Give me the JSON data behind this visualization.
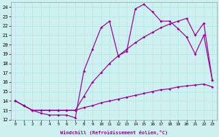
{
  "xlabel": "Windchill (Refroidissement éolien,°C)",
  "bg_color": "#cff0f0",
  "grid_color": "#b8e8e8",
  "line_color": "#990099",
  "xlim": [
    -0.5,
    23.5
  ],
  "ylim": [
    12,
    24.5
  ],
  "yticks": [
    12,
    13,
    14,
    15,
    16,
    17,
    18,
    19,
    20,
    21,
    22,
    23,
    24
  ],
  "xticks": [
    0,
    1,
    2,
    3,
    4,
    5,
    6,
    7,
    8,
    9,
    10,
    11,
    12,
    13,
    14,
    15,
    16,
    17,
    18,
    19,
    20,
    21,
    22,
    23
  ],
  "line_bottom_x": [
    0,
    1,
    2,
    3,
    4,
    5,
    6,
    7,
    8,
    9,
    10,
    11,
    12,
    13,
    14,
    15,
    16,
    17,
    18,
    19,
    20,
    21,
    22,
    23
  ],
  "line_bottom_y": [
    14.0,
    13.5,
    13.0,
    13.0,
    13.0,
    13.0,
    13.0,
    13.0,
    13.3,
    13.5,
    13.8,
    14.0,
    14.2,
    14.4,
    14.6,
    14.8,
    15.0,
    15.2,
    15.3,
    15.5,
    15.6,
    15.7,
    15.8,
    15.5
  ],
  "line_mid_x": [
    0,
    1,
    2,
    3,
    4,
    5,
    6,
    7,
    8,
    9,
    10,
    11,
    12,
    13,
    14,
    15,
    16,
    17,
    18,
    19,
    20,
    21,
    22,
    23
  ],
  "line_mid_y": [
    14.0,
    13.5,
    13.0,
    13.0,
    13.0,
    13.0,
    13.0,
    13.0,
    14.5,
    16.0,
    17.0,
    18.0,
    18.8,
    19.5,
    20.2,
    20.8,
    21.3,
    21.8,
    22.2,
    22.5,
    22.8,
    21.0,
    22.3,
    16.2
  ],
  "line_top_x": [
    0,
    1,
    2,
    3,
    4,
    5,
    6,
    7,
    8,
    9,
    10,
    11,
    12,
    13,
    14,
    15,
    16,
    17,
    18,
    19,
    20,
    21,
    22,
    23
  ],
  "line_top_y": [
    14.0,
    13.5,
    13.0,
    12.7,
    12.5,
    12.5,
    12.5,
    12.2,
    17.2,
    19.5,
    21.8,
    22.5,
    18.8,
    19.3,
    23.8,
    24.3,
    23.5,
    22.5,
    22.5,
    21.7,
    20.8,
    19.0,
    21.0,
    16.2
  ]
}
